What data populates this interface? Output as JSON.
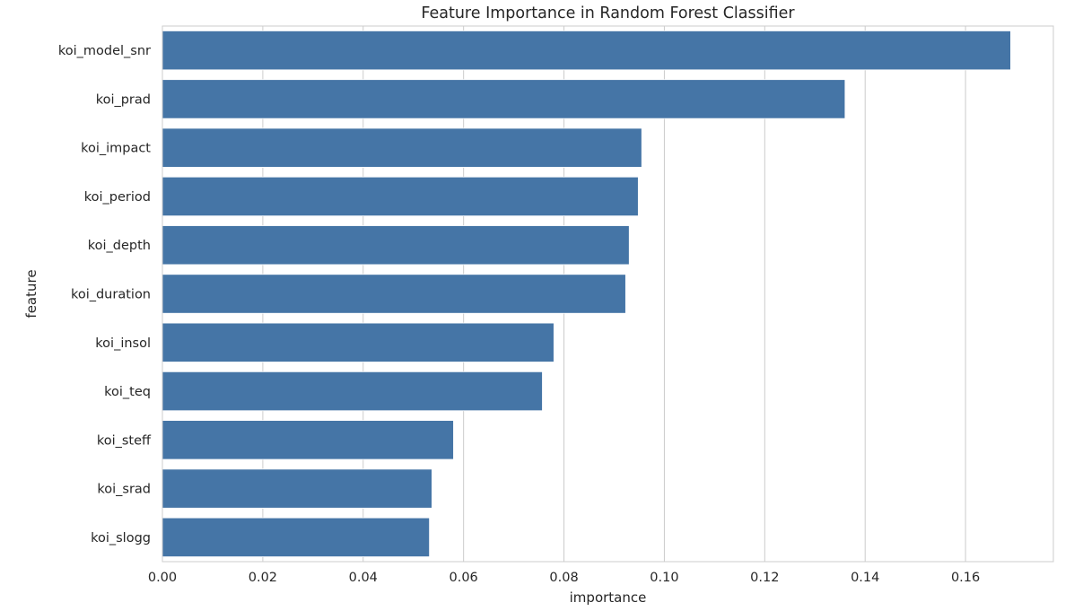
{
  "chart_data": {
    "type": "bar",
    "orientation": "horizontal",
    "title": "Feature Importance in Random Forest Classifier",
    "xlabel": "importance",
    "ylabel": "feature",
    "categories": [
      "koi_model_snr",
      "koi_prad",
      "koi_impact",
      "koi_period",
      "koi_depth",
      "koi_duration",
      "koi_insol",
      "koi_teq",
      "koi_steff",
      "koi_srad",
      "koi_slogg"
    ],
    "values": [
      0.169,
      0.136,
      0.0955,
      0.0948,
      0.093,
      0.0923,
      0.078,
      0.0757,
      0.058,
      0.0537,
      0.0532
    ],
    "xlim": [
      0,
      0.1775
    ],
    "xticks": [
      0.0,
      0.02,
      0.04,
      0.06,
      0.08,
      0.1,
      0.12,
      0.14,
      0.16
    ],
    "xtick_labels": [
      "0.00",
      "0.02",
      "0.04",
      "0.06",
      "0.08",
      "0.10",
      "0.12",
      "0.14",
      "0.16"
    ],
    "grid": "x",
    "bar_color": "#4575a6"
  }
}
